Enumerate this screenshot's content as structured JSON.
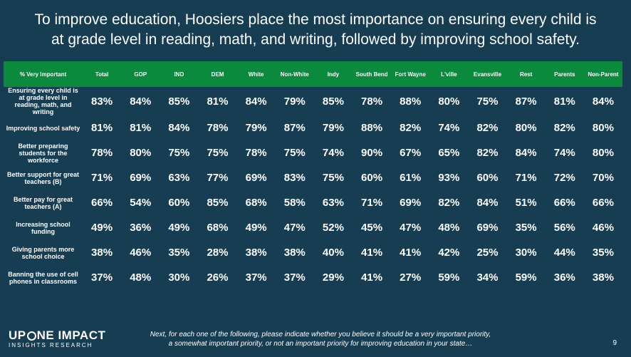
{
  "title_line1": "To improve education, Hoosiers place the most importance on ensuring every child is",
  "title_line2": "at grade level in reading, math, and writing, followed by improving school safety.",
  "colors": {
    "background": "#173d53",
    "header_green": "#0b8a3e",
    "text": "#ffffff"
  },
  "chart_data": {
    "type": "table",
    "corner_label": "% Very Important",
    "columns": [
      "Total",
      "GOP",
      "IND",
      "DEM",
      "White",
      "Non-White",
      "Indy",
      "South Bend",
      "Fort Wayne",
      "L'ville",
      "Evansville",
      "Rest",
      "Parents",
      "Non-Parent"
    ],
    "rows": [
      {
        "label": "Ensuring every child is at grade level in reading, math, and writing",
        "values": [
          "83%",
          "84%",
          "85%",
          "81%",
          "84%",
          "79%",
          "85%",
          "78%",
          "88%",
          "80%",
          "75%",
          "87%",
          "81%",
          "84%"
        ]
      },
      {
        "label": "Improving school safety",
        "values": [
          "81%",
          "81%",
          "84%",
          "78%",
          "79%",
          "87%",
          "79%",
          "88%",
          "82%",
          "74%",
          "82%",
          "80%",
          "82%",
          "80%"
        ]
      },
      {
        "label": "Better preparing students for the workforce",
        "values": [
          "78%",
          "80%",
          "75%",
          "75%",
          "78%",
          "75%",
          "74%",
          "90%",
          "67%",
          "65%",
          "82%",
          "84%",
          "74%",
          "80%"
        ]
      },
      {
        "label": "Better support for great teachers (B)",
        "values": [
          "71%",
          "69%",
          "63%",
          "77%",
          "69%",
          "83%",
          "75%",
          "60%",
          "61%",
          "93%",
          "60%",
          "71%",
          "72%",
          "70%"
        ]
      },
      {
        "label": "Better pay for great teachers (A)",
        "values": [
          "66%",
          "54%",
          "60%",
          "85%",
          "68%",
          "58%",
          "63%",
          "71%",
          "69%",
          "82%",
          "84%",
          "51%",
          "66%",
          "66%"
        ]
      },
      {
        "label": "Increasing school funding",
        "values": [
          "49%",
          "36%",
          "49%",
          "68%",
          "49%",
          "47%",
          "52%",
          "45%",
          "47%",
          "48%",
          "69%",
          "35%",
          "56%",
          "46%"
        ]
      },
      {
        "label": "Giving parents more school choice",
        "values": [
          "38%",
          "46%",
          "35%",
          "28%",
          "38%",
          "38%",
          "40%",
          "41%",
          "41%",
          "42%",
          "25%",
          "30%",
          "44%",
          "35%"
        ]
      },
      {
        "label": "Banning the use of cell phones in classrooms",
        "values": [
          "37%",
          "48%",
          "30%",
          "26%",
          "37%",
          "37%",
          "29%",
          "41%",
          "27%",
          "59%",
          "34%",
          "59%",
          "36%",
          "38%"
        ]
      }
    ]
  },
  "footer": {
    "question_line1": "Next, for each one of the following, please indicate whether you believe it should be a very important priority,",
    "question_line2": "a somewhat important priority, or not an important priority for improving education in your state…",
    "logo_part1": "UP",
    "logo_part2": "NE IMPACT",
    "logo_sub": "INSIGHTS RESEARCH",
    "page_number": "9"
  }
}
